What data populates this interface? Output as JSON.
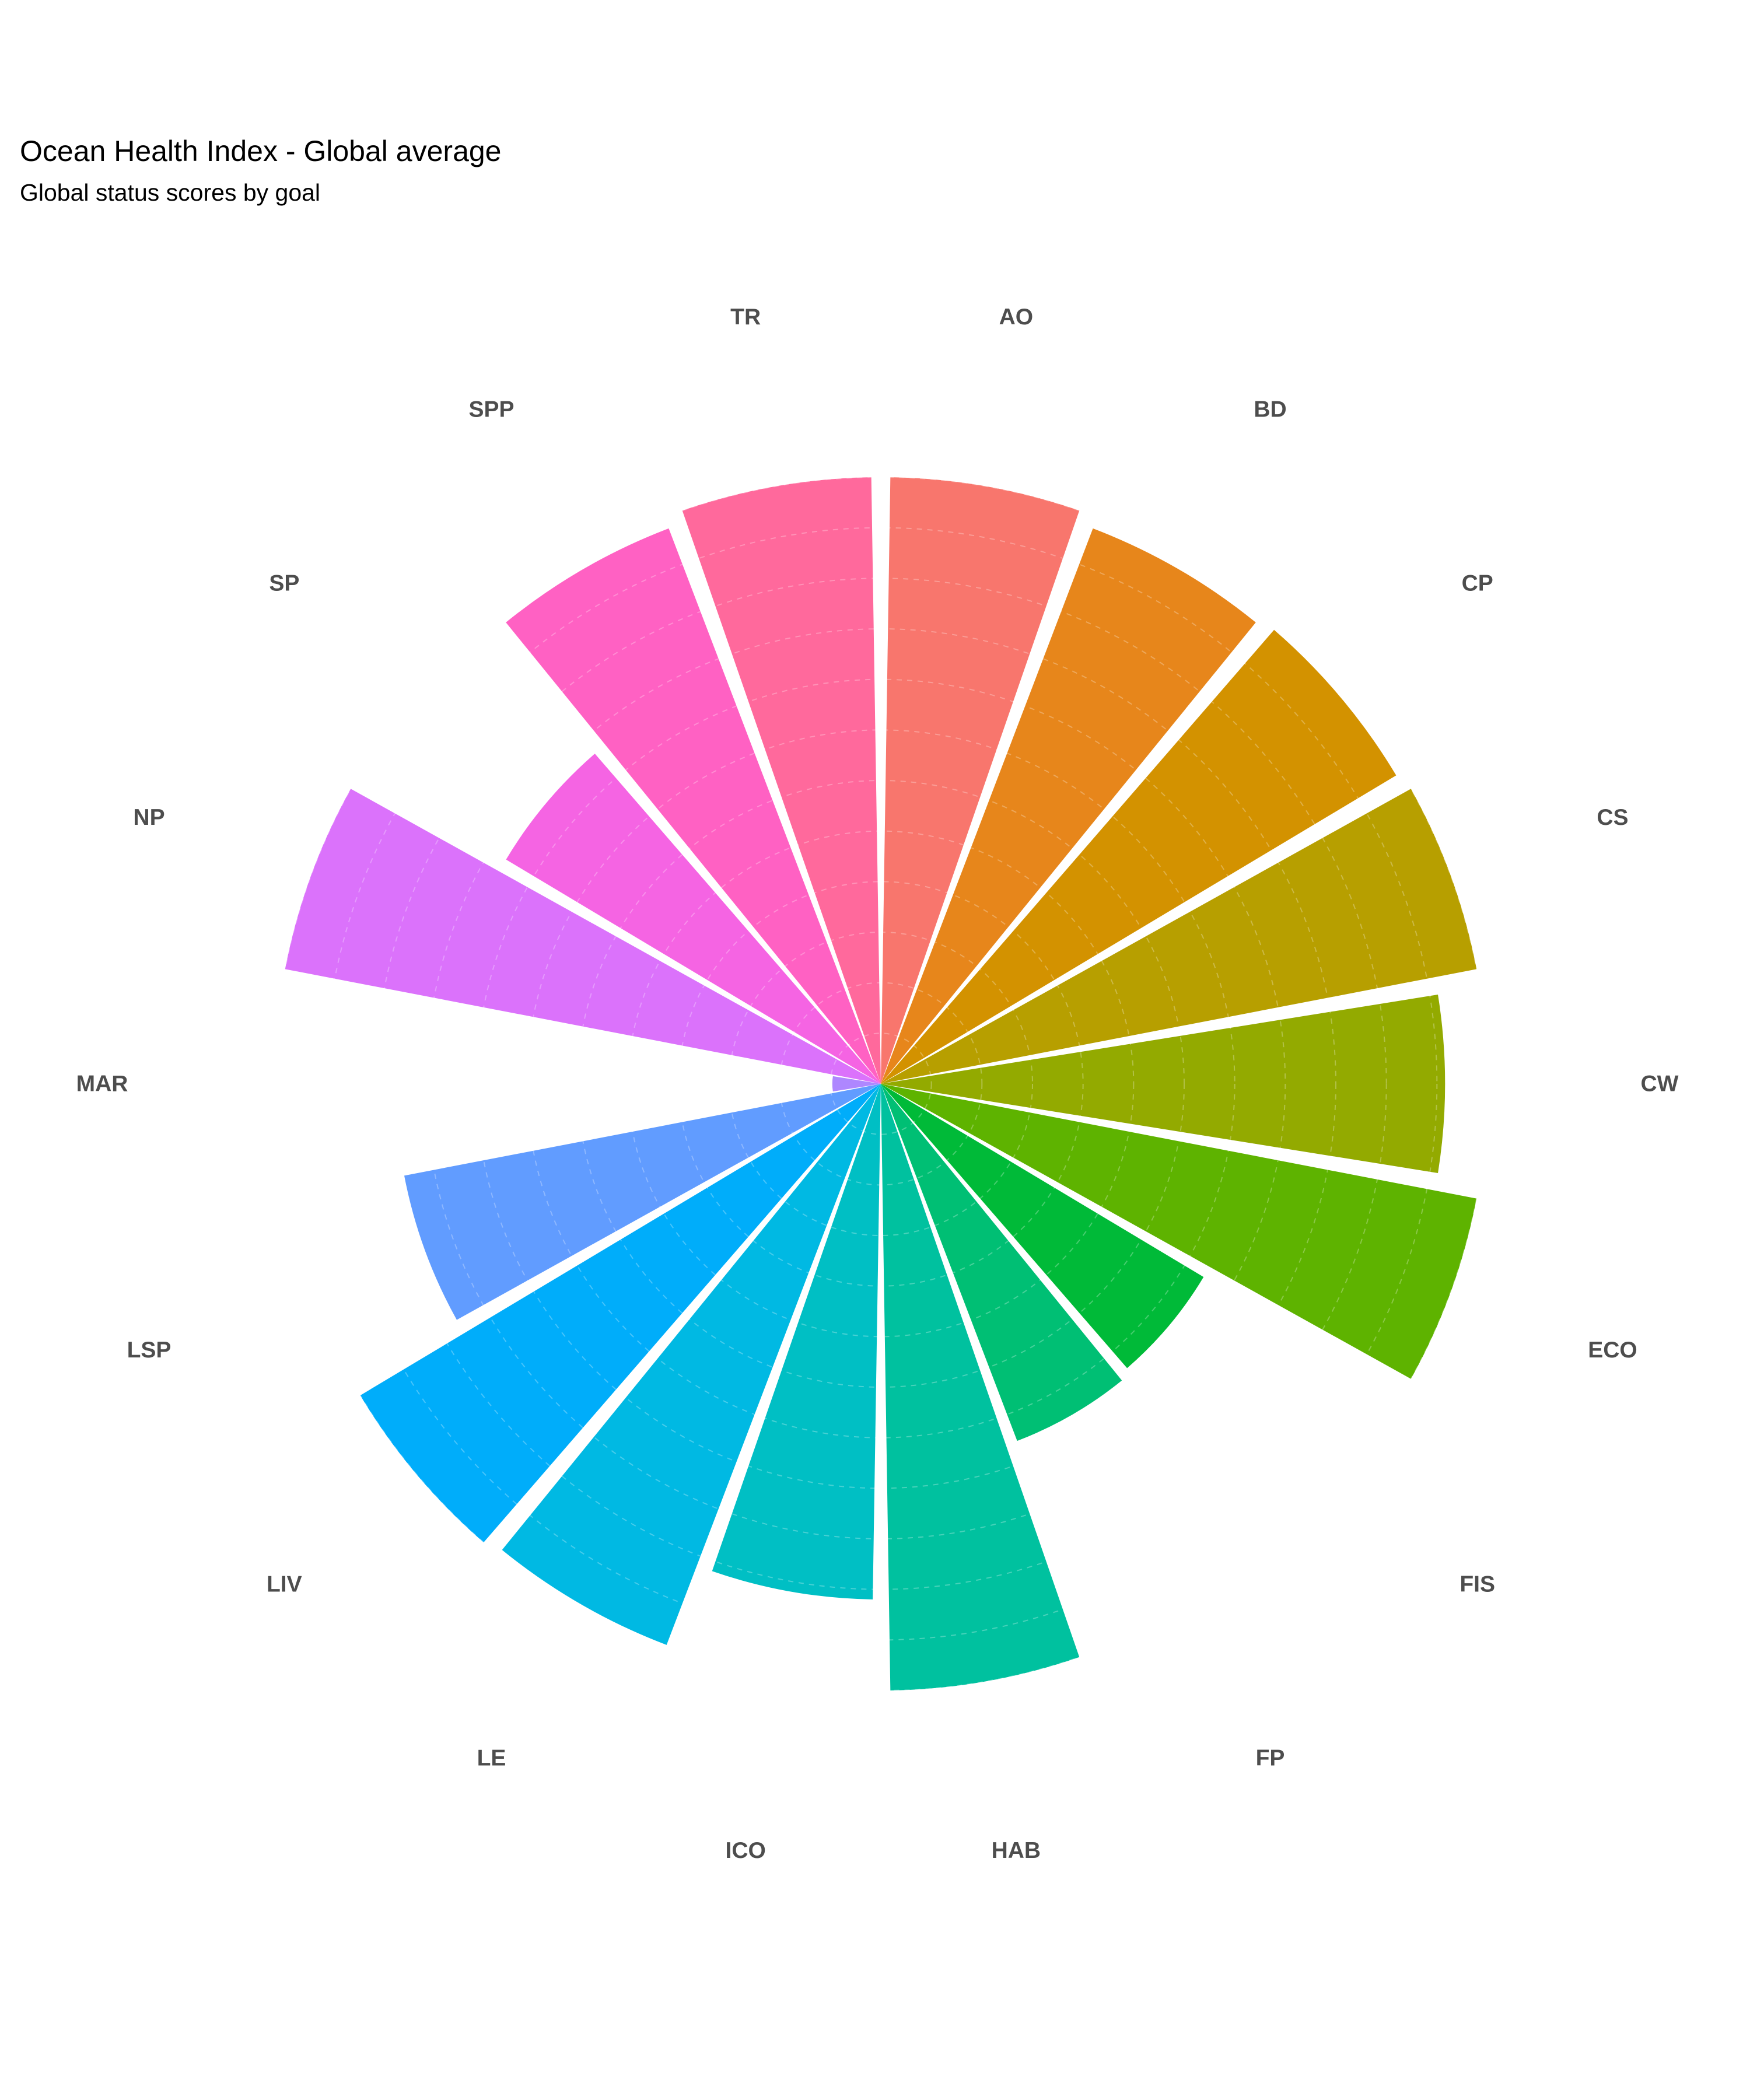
{
  "title": "Ocean Health Index - Global average",
  "subtitle": "Global status scores by goal",
  "chart_data": {
    "type": "bar",
    "coordinate_system": "polar",
    "categories": [
      "AO",
      "BD",
      "CP",
      "CS",
      "CW",
      "ECO",
      "FIS",
      "FP",
      "HAB",
      "ICO",
      "LE",
      "LIV",
      "LSP",
      "MAR",
      "NP",
      "SP",
      "SPP",
      "TR"
    ],
    "values": [
      100,
      98,
      99,
      100,
      93,
      100,
      62,
      63,
      100,
      85,
      99,
      100,
      80,
      8,
      100,
      72,
      98,
      100
    ],
    "colors": [
      "#F8766D",
      "#E7861B",
      "#D39200",
      "#B79F00",
      "#93AA00",
      "#5EB300",
      "#00BA38",
      "#00BF74",
      "#00C19F",
      "#00BFC4",
      "#00B9E3",
      "#00ADFA",
      "#619CFF",
      "#AE87FF",
      "#DB72FB",
      "#F564E3",
      "#FF61C3",
      "#FF699C"
    ],
    "ylim": [
      0,
      100
    ],
    "grid": true,
    "legend": "none"
  }
}
